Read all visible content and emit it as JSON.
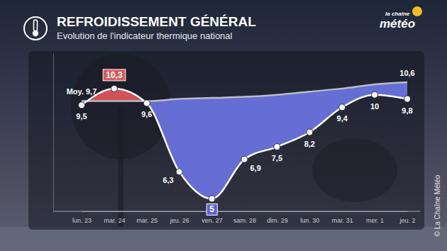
{
  "chart_data": {
    "type": "line",
    "title": "REFROIDISSEMENT GÉNÉRAL",
    "subtitle": "Evolution de l'indicateur thermique national",
    "annotations": [
      "la chaîne",
      "météo",
      "© La Chaîne Météo"
    ],
    "categories": [
      "lun. 23",
      "mar. 24",
      "mar. 25",
      "jeu. 26",
      "ven. 27",
      "sam. 28",
      "dim. 29",
      "lun. 30",
      "mar. 31",
      "mer. 1",
      "jeu. 2"
    ],
    "series": [
      {
        "color": "#ffffff",
        "marker": "circle",
        "data_labels": true,
        "values": [
          9.5,
          10.3,
          9.6,
          6.3,
          5,
          6.9,
          7.5,
          8.2,
          9.4,
          10,
          9.8
        ],
        "value_labels": [
          "9,5",
          "10,3",
          "9,6",
          "6,3",
          "5",
          "6,9",
          "7,5",
          "8,2",
          "9,4",
          "10",
          "9,8"
        ]
      },
      {
        "color": "#b9bcc6",
        "marker": "none",
        "data_labels": true,
        "values": [
          9.7,
          9.7,
          9.7,
          9.8,
          9.85,
          9.9,
          10.0,
          10.15,
          10.3,
          10.5,
          10.6
        ],
        "value_labels": [
          "Moy. 9,7",
          null,
          null,
          null,
          null,
          null,
          null,
          null,
          null,
          null,
          "10,6"
        ]
      }
    ],
    "ylim": [
      4.4,
      12
    ],
    "yticks": [],
    "tick_labels": "x",
    "grid": false
  }
}
